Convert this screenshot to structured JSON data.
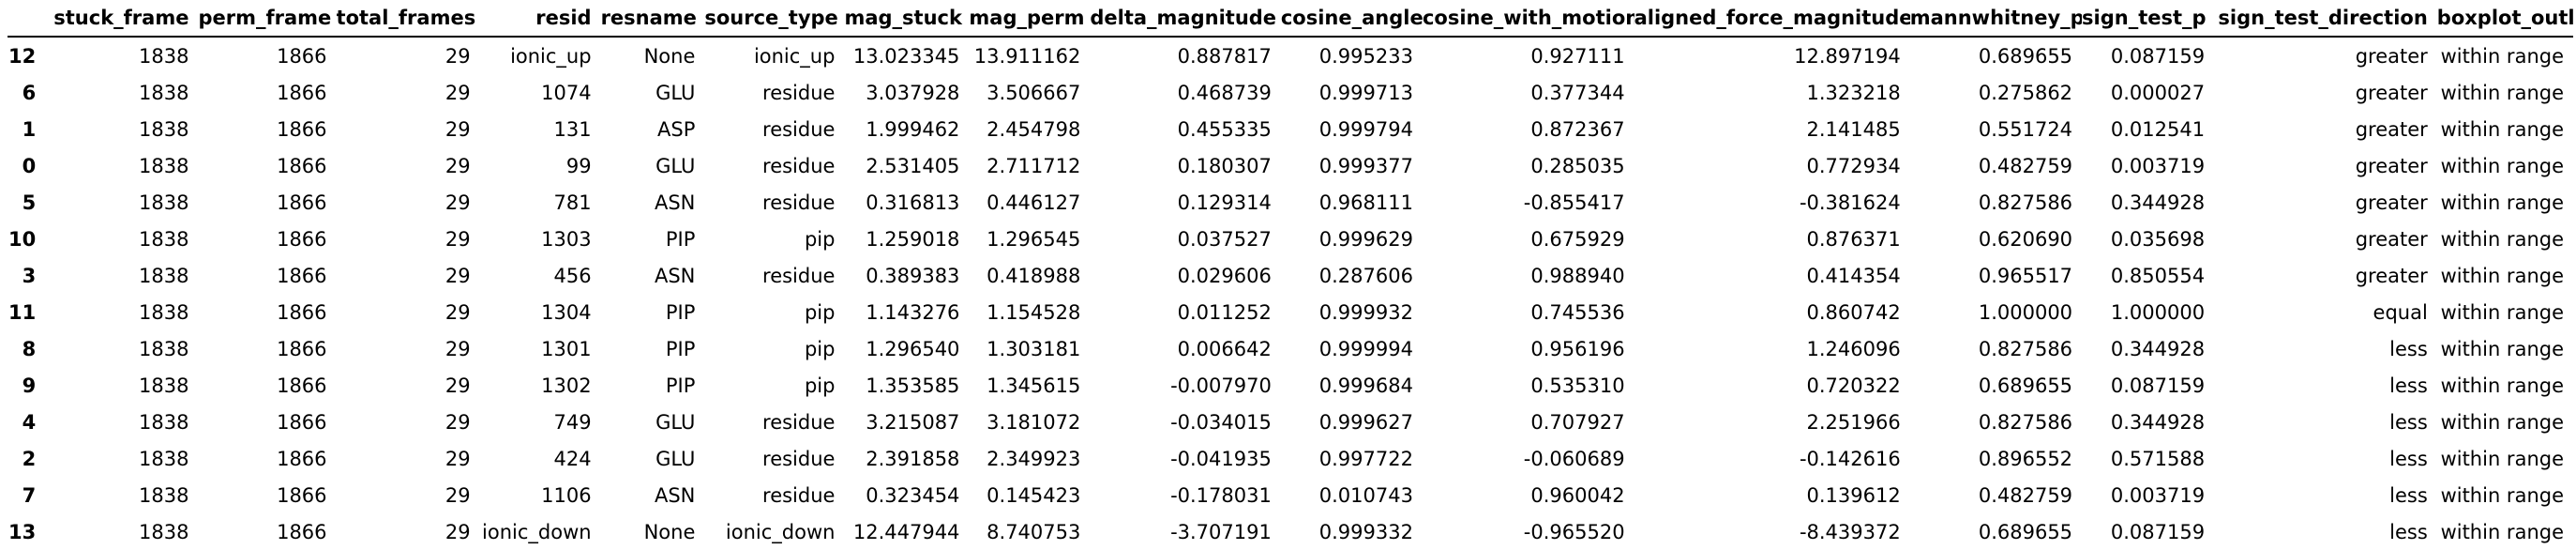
{
  "table": {
    "columns": [
      "",
      "stuck_frame",
      "perm_frame",
      "total_frames",
      "resid",
      "resname",
      "source_type",
      "mag_stuck",
      "mag_perm",
      "delta_magnitude",
      "cosine_angle",
      "cosine_with_motion",
      "aligned_force_magnitude",
      "mannwhitney_p",
      "sign_test_p",
      "sign_test_direction",
      "boxplot_outlier"
    ],
    "rows": [
      [
        "12",
        "1838",
        "1866",
        "29",
        "ionic_up",
        "None",
        "ionic_up",
        "13.023345",
        "13.911162",
        "0.887817",
        "0.995233",
        "0.927111",
        "12.897194",
        "0.689655",
        "0.087159",
        "greater",
        "within range"
      ],
      [
        "6",
        "1838",
        "1866",
        "29",
        "1074",
        "GLU",
        "residue",
        "3.037928",
        "3.506667",
        "0.468739",
        "0.999713",
        "0.377344",
        "1.323218",
        "0.275862",
        "0.000027",
        "greater",
        "within range"
      ],
      [
        "1",
        "1838",
        "1866",
        "29",
        "131",
        "ASP",
        "residue",
        "1.999462",
        "2.454798",
        "0.455335",
        "0.999794",
        "0.872367",
        "2.141485",
        "0.551724",
        "0.012541",
        "greater",
        "within range"
      ],
      [
        "0",
        "1838",
        "1866",
        "29",
        "99",
        "GLU",
        "residue",
        "2.531405",
        "2.711712",
        "0.180307",
        "0.999377",
        "0.285035",
        "0.772934",
        "0.482759",
        "0.003719",
        "greater",
        "within range"
      ],
      [
        "5",
        "1838",
        "1866",
        "29",
        "781",
        "ASN",
        "residue",
        "0.316813",
        "0.446127",
        "0.129314",
        "0.968111",
        "-0.855417",
        "-0.381624",
        "0.827586",
        "0.344928",
        "greater",
        "within range"
      ],
      [
        "10",
        "1838",
        "1866",
        "29",
        "1303",
        "PIP",
        "pip",
        "1.259018",
        "1.296545",
        "0.037527",
        "0.999629",
        "0.675929",
        "0.876371",
        "0.620690",
        "0.035698",
        "greater",
        "within range"
      ],
      [
        "3",
        "1838",
        "1866",
        "29",
        "456",
        "ASN",
        "residue",
        "0.389383",
        "0.418988",
        "0.029606",
        "0.287606",
        "0.988940",
        "0.414354",
        "0.965517",
        "0.850554",
        "greater",
        "within range"
      ],
      [
        "11",
        "1838",
        "1866",
        "29",
        "1304",
        "PIP",
        "pip",
        "1.143276",
        "1.154528",
        "0.011252",
        "0.999932",
        "0.745536",
        "0.860742",
        "1.000000",
        "1.000000",
        "equal",
        "within range"
      ],
      [
        "8",
        "1838",
        "1866",
        "29",
        "1301",
        "PIP",
        "pip",
        "1.296540",
        "1.303181",
        "0.006642",
        "0.999994",
        "0.956196",
        "1.246096",
        "0.827586",
        "0.344928",
        "less",
        "within range"
      ],
      [
        "9",
        "1838",
        "1866",
        "29",
        "1302",
        "PIP",
        "pip",
        "1.353585",
        "1.345615",
        "-0.007970",
        "0.999684",
        "0.535310",
        "0.720322",
        "0.689655",
        "0.087159",
        "less",
        "within range"
      ],
      [
        "4",
        "1838",
        "1866",
        "29",
        "749",
        "GLU",
        "residue",
        "3.215087",
        "3.181072",
        "-0.034015",
        "0.999627",
        "0.707927",
        "2.251966",
        "0.827586",
        "0.344928",
        "less",
        "within range"
      ],
      [
        "2",
        "1838",
        "1866",
        "29",
        "424",
        "GLU",
        "residue",
        "2.391858",
        "2.349923",
        "-0.041935",
        "0.997722",
        "-0.060689",
        "-0.142616",
        "0.896552",
        "0.571588",
        "less",
        "within range"
      ],
      [
        "7",
        "1838",
        "1866",
        "29",
        "1106",
        "ASN",
        "residue",
        "0.323454",
        "0.145423",
        "-0.178031",
        "0.010743",
        "0.960042",
        "0.139612",
        "0.482759",
        "0.003719",
        "less",
        "within range"
      ],
      [
        "13",
        "1838",
        "1866",
        "29",
        "ionic_down",
        "None",
        "ionic_down",
        "12.447944",
        "8.740753",
        "-3.707191",
        "0.999332",
        "-0.965520",
        "-8.439372",
        "0.689655",
        "0.087159",
        "less",
        "within range"
      ]
    ]
  }
}
